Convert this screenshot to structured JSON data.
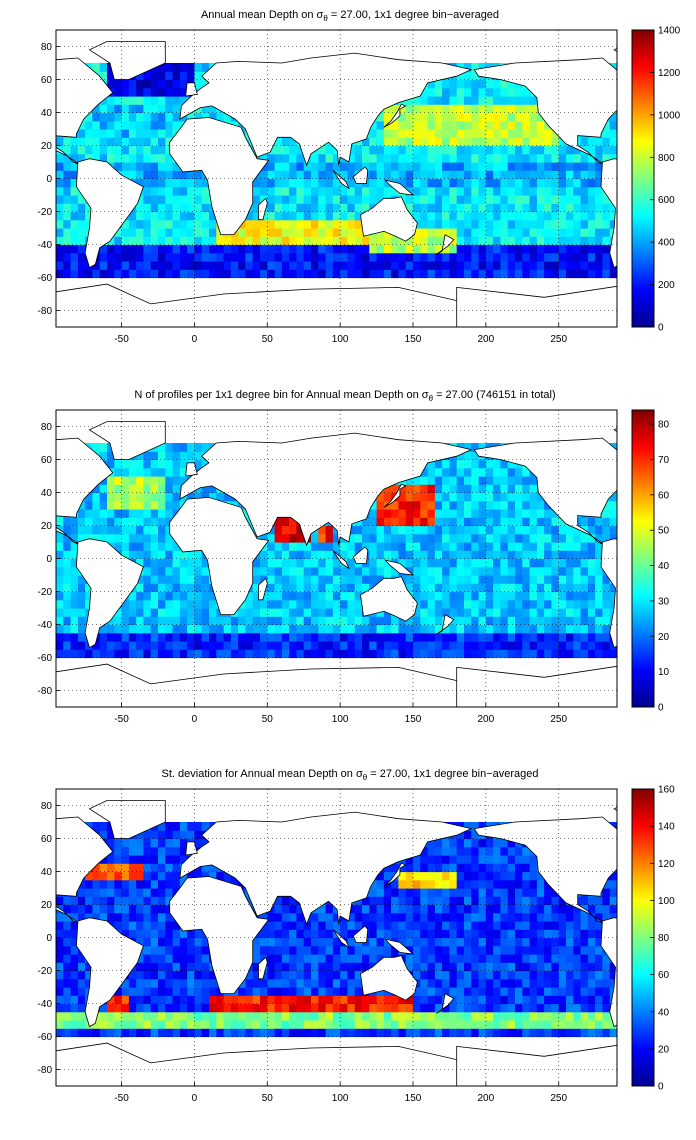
{
  "chart_data": [
    {
      "type": "heatmap",
      "title_prefix": "Annual mean Depth on ",
      "title_symbol": "σ",
      "title_subscript": "θ",
      "title_suffix": " = 27.00, 1x1 degree bin−averaged",
      "x_ticks": [
        -50,
        0,
        50,
        100,
        150,
        200,
        250
      ],
      "y_ticks": [
        80,
        60,
        40,
        20,
        0,
        -20,
        -40,
        -60,
        -80
      ],
      "xlim": [
        -95,
        290
      ],
      "ylim": [
        -90,
        90
      ],
      "colorbar_ticks": [
        0,
        200,
        400,
        600,
        800,
        1000,
        1200,
        1400
      ],
      "colorbar_range": [
        0,
        1400
      ],
      "colormap": "jet",
      "grid": true,
      "regions": [
        {
          "name": "Southern Ocean band (-60 to -40)",
          "value": 200
        },
        {
          "name": "South Indian Ocean (-40 to -25)",
          "value": 850
        },
        {
          "name": "North Pacific subtropics (20 to 45)",
          "value": 750
        },
        {
          "name": "North Atlantic subpolar (50 to 70)",
          "value": 150
        },
        {
          "name": "Tropical band (-20 to 20)",
          "value": 500
        }
      ]
    },
    {
      "type": "heatmap",
      "title_prefix": "N of profiles per 1x1 degree bin for Annual mean Depth on ",
      "title_symbol": "σ",
      "title_subscript": "θ",
      "title_suffix": " = 27.00 (746151 in total)",
      "x_ticks": [
        -50,
        0,
        50,
        100,
        150,
        200,
        250
      ],
      "y_ticks": [
        80,
        60,
        40,
        20,
        0,
        -20,
        -40,
        -60,
        -80
      ],
      "xlim": [
        -95,
        290
      ],
      "ylim": [
        -90,
        90
      ],
      "colorbar_ticks": [
        0,
        10,
        20,
        30,
        40,
        50,
        60,
        70,
        80
      ],
      "colorbar_range": [
        0,
        84
      ],
      "colormap": "jet",
      "grid": true,
      "regions": [
        {
          "name": "Kuroshio / NW Pacific (25 to 45, 135 to 160)",
          "value": 80
        },
        {
          "name": "Arabian Sea / Bay of Bengal",
          "value": 75
        },
        {
          "name": "Open ocean typical",
          "value": 30
        },
        {
          "name": "Southern Ocean band",
          "value": 15
        }
      ]
    },
    {
      "type": "heatmap",
      "title_prefix": "St. deviation for Annual mean Depth on ",
      "title_symbol": "σ",
      "title_subscript": "θ",
      "title_suffix": " = 27.00, 1x1 degree bin−averaged",
      "x_ticks": [
        -50,
        0,
        50,
        100,
        150,
        200,
        250
      ],
      "y_ticks": [
        80,
        60,
        40,
        20,
        0,
        -20,
        -40,
        -60,
        -80
      ],
      "xlim": [
        -95,
        290
      ],
      "ylim": [
        -90,
        90
      ],
      "colorbar_ticks": [
        0,
        20,
        40,
        60,
        80,
        100,
        120,
        140,
        160
      ],
      "colorbar_range": [
        0,
        160
      ],
      "colormap": "jet",
      "grid": true,
      "regions": [
        {
          "name": "Gulf Stream (35 to 45)",
          "value": 130
        },
        {
          "name": "Kuroshio extension (30 to 40)",
          "value": 110
        },
        {
          "name": "Antarctic Circumpolar Current (-55 to -40)",
          "value": 140
        },
        {
          "name": "Open ocean typical",
          "value": 25
        }
      ]
    }
  ]
}
